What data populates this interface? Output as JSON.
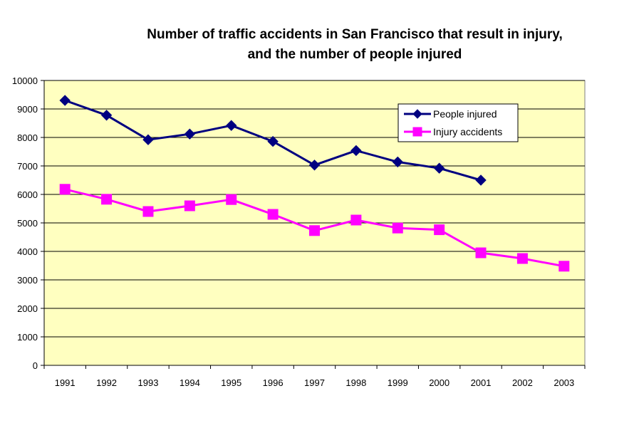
{
  "chart_data": {
    "type": "line",
    "title_lines": [
      "Number of traffic accidents in San Francisco that result in injury,",
      "and the number of people injured"
    ],
    "xlabel": "",
    "ylabel": "",
    "categories": [
      "1991",
      "1992",
      "1993",
      "1994",
      "1995",
      "1996",
      "1997",
      "1998",
      "1999",
      "2000",
      "2001",
      "2002",
      "2003"
    ],
    "ylim": [
      0,
      10000
    ],
    "yticks": [
      0,
      1000,
      2000,
      3000,
      4000,
      5000,
      6000,
      7000,
      8000,
      9000,
      10000
    ],
    "grid": true,
    "legend_position": "top-right",
    "plot_background": "#FFFFC0",
    "series": [
      {
        "name": "People injured",
        "color": "#000080",
        "marker": "diamond",
        "values": [
          9300,
          8780,
          7920,
          8120,
          8420,
          7860,
          7030,
          7540,
          7140,
          6920,
          6500,
          null,
          null
        ]
      },
      {
        "name": "Injury accidents",
        "color": "#FF00FF",
        "marker": "square",
        "values": [
          6180,
          5830,
          5400,
          5600,
          5820,
          5300,
          4730,
          5100,
          4820,
          4760,
          3950,
          3750,
          3480
        ]
      }
    ]
  }
}
